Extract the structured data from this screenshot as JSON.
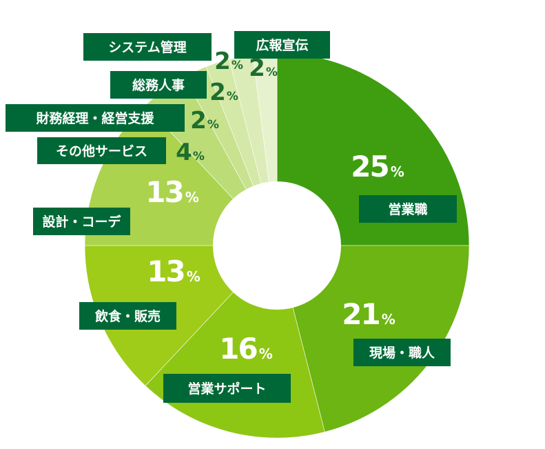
{
  "chart_data": {
    "type": "pie",
    "style": "donut",
    "unit": "%",
    "series": [
      {
        "name": "営業職",
        "value": 25,
        "color": "#3f9e10"
      },
      {
        "name": "現場・職人",
        "value": 21,
        "color": "#6cb512"
      },
      {
        "name": "営業サポート",
        "value": 16,
        "color": "#8ec614"
      },
      {
        "name": "飲食・販売",
        "value": 13,
        "color": "#9ecc18"
      },
      {
        "name": "設計・コーデ",
        "value": 13,
        "color": "#abd34e"
      },
      {
        "name": "その他サービス",
        "value": 4,
        "color": "#bcdc78"
      },
      {
        "name": "財務経理・経営支援",
        "value": 2,
        "color": "#c8e28f"
      },
      {
        "name": "総務人事",
        "value": 2,
        "color": "#d4e8a8"
      },
      {
        "name": "システム管理",
        "value": 2,
        "color": "#dcecb8"
      },
      {
        "name": "広報宣伝",
        "value": 2,
        "color": "#e6f2cd"
      }
    ]
  },
  "colors": {
    "label_box": "#006837",
    "label_text": "#ffffff",
    "pct_on_dark": "#ffffff",
    "pct_on_light": "#1e6e2d"
  }
}
